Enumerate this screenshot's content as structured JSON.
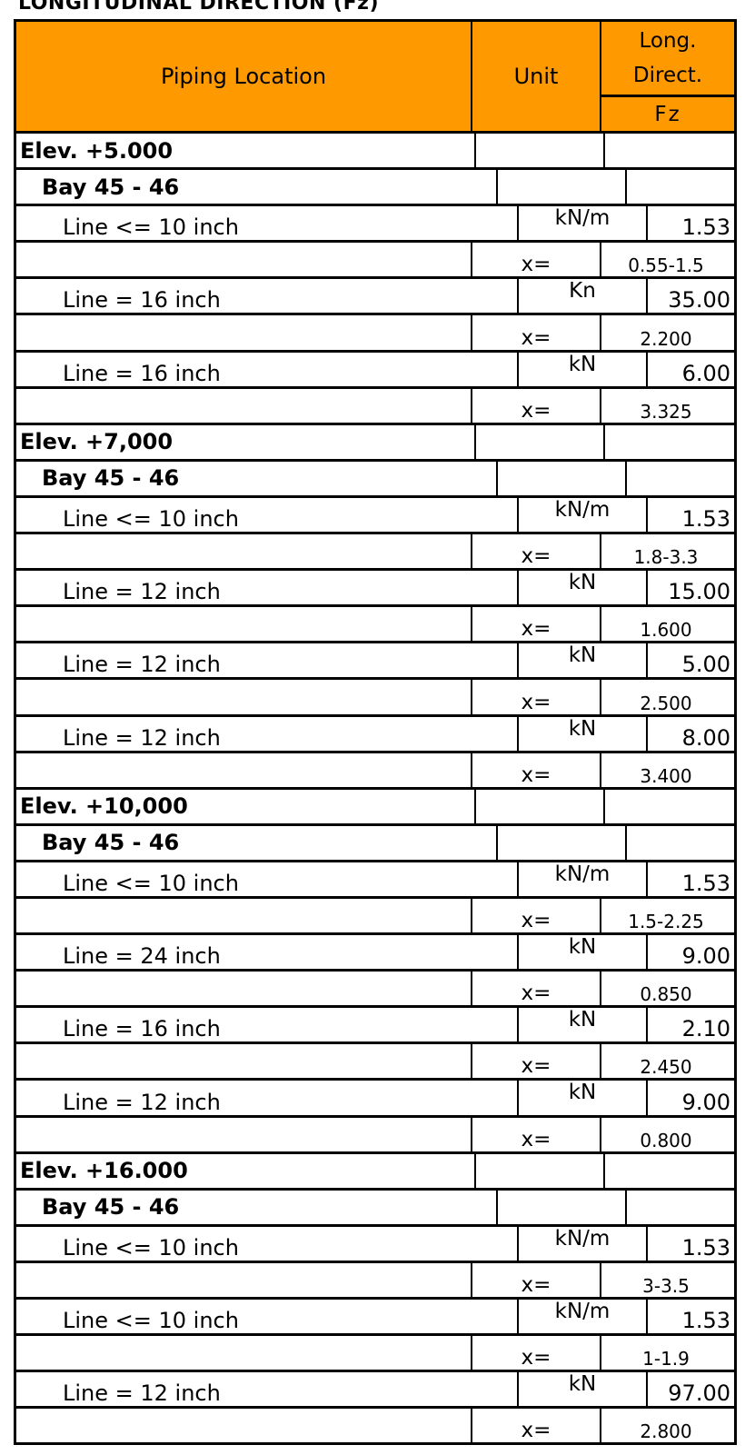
{
  "title": "LONGITUDINAL DIRECTION (Fz)",
  "header": {
    "location": "Piping Location",
    "unit": "Unit",
    "direction_line1": "Long.",
    "direction_line2": "Direct.",
    "component": "Fz",
    "fill_color": "#FF9900"
  },
  "rows": [
    {
      "type": "elev",
      "label": "Elev. +5.000",
      "unit": "",
      "value": ""
    },
    {
      "type": "bay",
      "label": "Bay 45 - 46",
      "unit": "",
      "value": ""
    },
    {
      "type": "line",
      "label": "Line <= 10 inch",
      "unit": "kN/m",
      "value": "1.53"
    },
    {
      "type": "x",
      "label": "",
      "unit": "x=",
      "value": "0.55-1.5"
    },
    {
      "type": "line",
      "label": "Line = 16 inch",
      "unit": "Kn",
      "value": "35.00"
    },
    {
      "type": "x",
      "label": "",
      "unit": "x=",
      "value": "2.200"
    },
    {
      "type": "line",
      "label": "Line = 16 inch",
      "unit": "kN",
      "value": "6.00"
    },
    {
      "type": "x",
      "label": "",
      "unit": "x=",
      "value": "3.325"
    },
    {
      "type": "elev",
      "label": "Elev. +7,000",
      "unit": "",
      "value": ""
    },
    {
      "type": "bay",
      "label": "Bay 45 - 46",
      "unit": "",
      "value": ""
    },
    {
      "type": "line",
      "label": "Line <= 10 inch",
      "unit": "kN/m",
      "value": "1.53"
    },
    {
      "type": "x",
      "label": "",
      "unit": "x=",
      "value": "1.8-3.3"
    },
    {
      "type": "line",
      "label": "Line = 12 inch",
      "unit": "kN",
      "value": "15.00"
    },
    {
      "type": "x",
      "label": "",
      "unit": "x=",
      "value": "1.600"
    },
    {
      "type": "line",
      "label": "Line = 12 inch",
      "unit": "kN",
      "value": "5.00"
    },
    {
      "type": "x",
      "label": "",
      "unit": "x=",
      "value": "2.500"
    },
    {
      "type": "line",
      "label": "Line = 12 inch",
      "unit": "kN",
      "value": "8.00"
    },
    {
      "type": "x",
      "label": "",
      "unit": "x=",
      "value": "3.400"
    },
    {
      "type": "elev",
      "label": "Elev. +10,000",
      "unit": "",
      "value": ""
    },
    {
      "type": "bay",
      "label": "Bay 45 - 46",
      "unit": "",
      "value": ""
    },
    {
      "type": "line",
      "label": "Line <= 10 inch",
      "unit": "kN/m",
      "value": "1.53"
    },
    {
      "type": "x",
      "label": "",
      "unit": "x=",
      "value": "1.5-2.25"
    },
    {
      "type": "line",
      "label": "Line = 24 inch",
      "unit": "kN",
      "value": "9.00"
    },
    {
      "type": "x",
      "label": "",
      "unit": "x=",
      "value": "0.850"
    },
    {
      "type": "line",
      "label": "Line = 16 inch",
      "unit": "kN",
      "value": "2.10"
    },
    {
      "type": "x",
      "label": "",
      "unit": "x=",
      "value": "2.450"
    },
    {
      "type": "line",
      "label": "Line = 12 inch",
      "unit": "kN",
      "value": "9.00"
    },
    {
      "type": "x",
      "label": "",
      "unit": "x=",
      "value": "0.800"
    },
    {
      "type": "elev",
      "label": "Elev. +16.000",
      "unit": "",
      "value": ""
    },
    {
      "type": "bay",
      "label": "Bay 45 - 46",
      "unit": "",
      "value": ""
    },
    {
      "type": "line",
      "label": "Line <= 10 inch",
      "unit": "kN/m",
      "value": "1.53"
    },
    {
      "type": "x",
      "label": "",
      "unit": "x=",
      "value": "3-3.5"
    },
    {
      "type": "line",
      "label": "Line <= 10 inch",
      "unit": "kN/m",
      "value": "1.53"
    },
    {
      "type": "x",
      "label": "",
      "unit": "x=",
      "value": "1-1.9"
    },
    {
      "type": "line",
      "label": "Line = 12 inch",
      "unit": "kN",
      "value": "97.00"
    },
    {
      "type": "x",
      "label": "",
      "unit": "x=",
      "value": "2.800"
    }
  ]
}
